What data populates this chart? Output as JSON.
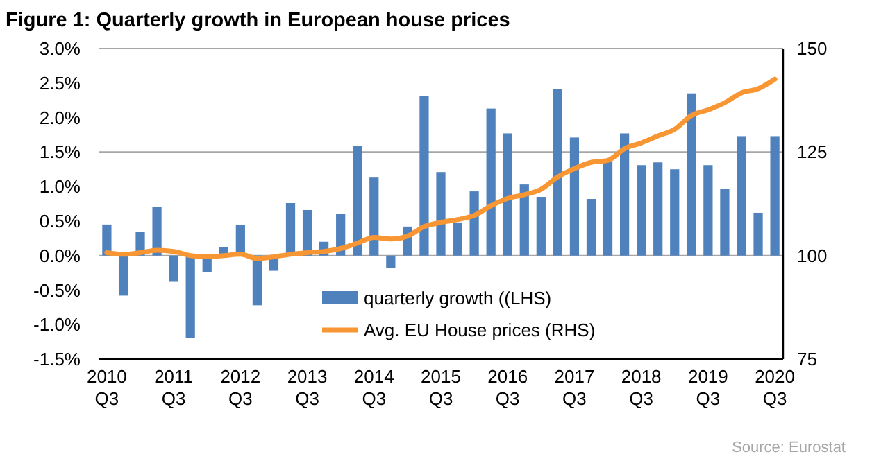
{
  "chart_data": {
    "type": "bar",
    "title": "Figure 1: Quarterly growth in European house prices",
    "categories": [
      "2010 Q3",
      null,
      null,
      null,
      "2011 Q3",
      null,
      null,
      null,
      "2012 Q3",
      null,
      null,
      null,
      "2013 Q3",
      null,
      null,
      null,
      "2014 Q3",
      null,
      null,
      null,
      "2015 Q3",
      null,
      null,
      null,
      "2016 Q3",
      null,
      null,
      null,
      "2017 Q3",
      null,
      null,
      null,
      "2018 Q3",
      null,
      null,
      null,
      "2019 Q3",
      null,
      null,
      null,
      "2020 Q3"
    ],
    "series": [
      {
        "name": "quarterly growth ((LHS)",
        "color": "#4f81bd",
        "values": [
          0.45,
          -0.58,
          0.34,
          0.7,
          -0.38,
          -1.19,
          -0.24,
          0.12,
          0.44,
          -0.72,
          -0.22,
          0.76,
          0.66,
          0.2,
          0.6,
          1.59,
          1.13,
          -0.18,
          0.42,
          2.31,
          1.21,
          0.48,
          0.93,
          2.13,
          1.77,
          1.03,
          0.85,
          2.41,
          1.71,
          0.82,
          1.37,
          1.77,
          1.31,
          1.35,
          1.25,
          2.35,
          1.31,
          0.97,
          1.73,
          0.62,
          1.73
        ]
      },
      {
        "name": "Avg. EU House prices (RHS)",
        "type": "line",
        "axis": "y2",
        "color": "#f79632",
        "values": [
          100.7,
          100.3,
          100.7,
          101.3,
          101,
          100,
          99.7,
          100,
          100.3,
          99.3,
          99.7,
          100.3,
          100.7,
          101,
          101.7,
          103,
          104.4,
          104,
          104.7,
          107,
          108,
          108.7,
          109.7,
          112,
          113.8,
          114.7,
          116,
          119,
          121,
          122.5,
          123,
          125.8,
          127.2,
          128.9,
          130.5,
          133.8,
          135.2,
          136.9,
          139.3,
          140.3,
          142.6
        ]
      }
    ],
    "ylim": [
      -1.5,
      3
    ],
    "yticks": [
      {
        "value": -1.5,
        "label": "-1.5%"
      },
      {
        "value": -1,
        "label": "-1.0%"
      },
      {
        "value": -0.5,
        "label": "-0.5%"
      },
      {
        "value": 0,
        "label": "0.0%"
      },
      {
        "value": 0.5,
        "label": "0.5%"
      },
      {
        "value": 1,
        "label": "1.0%"
      },
      {
        "value": 1.5,
        "label": "1.5%"
      },
      {
        "value": 2,
        "label": "2.0%"
      },
      {
        "value": 2.5,
        "label": "2.5%"
      },
      {
        "value": 3,
        "label": "3.0%"
      }
    ],
    "y2lim": [
      75,
      150
    ],
    "y2ticks": [
      75,
      100,
      125,
      150
    ],
    "grid": "y2",
    "legend": "bottom",
    "marker": "none",
    "line_style": "solid",
    "annotations": [
      "Source: Eurostat"
    ]
  }
}
